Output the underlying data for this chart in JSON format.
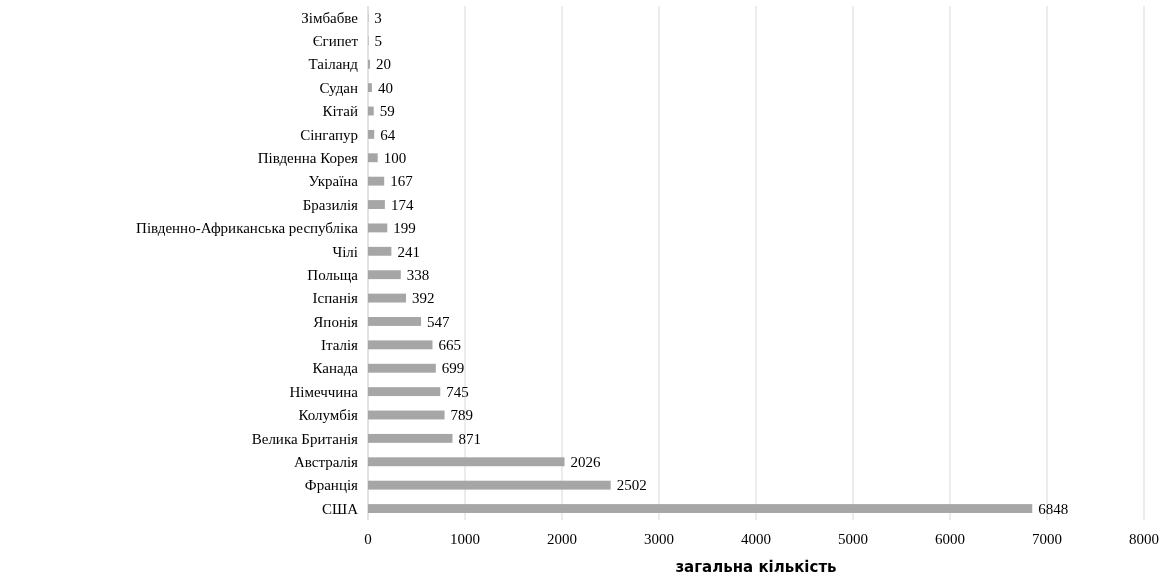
{
  "chart_data": {
    "type": "bar",
    "orientation": "horizontal",
    "xlabel": "загальна кількість",
    "categories": [
      "Зімбабве",
      "Єгипет",
      "Таіланд",
      "Судан",
      "Кітай",
      "Сінгапур",
      "Південна Корея",
      "Україна",
      "Бразилія",
      "Південно-Африканська республіка",
      "Чілі",
      "Польща",
      "Іспанія",
      "Японія",
      "Італія",
      "Канада",
      "Німеччина",
      "Колумбія",
      "Велика Британія",
      "Австралія",
      "Франція",
      "США"
    ],
    "values": [
      3,
      5,
      20,
      40,
      59,
      64,
      100,
      167,
      174,
      199,
      241,
      338,
      392,
      547,
      665,
      699,
      745,
      789,
      871,
      2026,
      2502,
      6848
    ],
    "color": "#a6a6a6",
    "data_labels": true,
    "grid": "x",
    "xlim": [
      0,
      8000
    ],
    "xticks": [
      0,
      1000,
      2000,
      3000,
      4000,
      5000,
      6000,
      7000,
      8000
    ]
  }
}
